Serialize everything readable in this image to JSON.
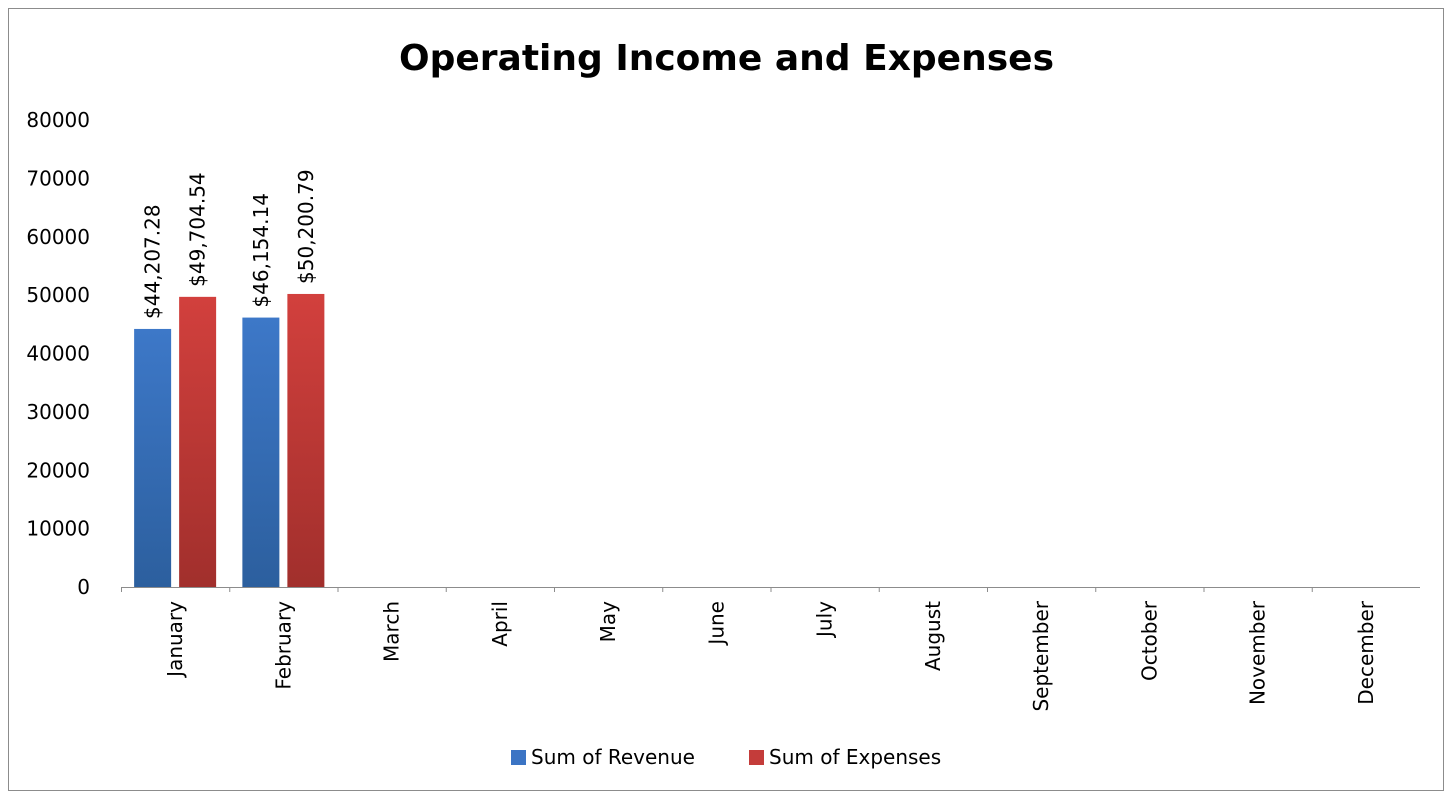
{
  "chart_data": {
    "type": "bar",
    "title": "Operating Income and Expenses",
    "categories": [
      "January",
      "February",
      "March",
      "April",
      "May",
      "June",
      "July",
      "August",
      "September",
      "October",
      "November",
      "December"
    ],
    "series": [
      {
        "name": "Sum of Revenue",
        "values": [
          44207.28,
          46154.14,
          null,
          null,
          null,
          null,
          null,
          null,
          null,
          null,
          null,
          null
        ],
        "labels": [
          "$44,207.28",
          "$46,154.14"
        ],
        "color": "#3b74c4"
      },
      {
        "name": "Sum of Expenses",
        "values": [
          49704.54,
          50200.79,
          null,
          null,
          null,
          null,
          null,
          null,
          null,
          null,
          null,
          null
        ],
        "labels": [
          "$49,704.54",
          "$50,200.79"
        ],
        "color": "#c43c3a"
      }
    ],
    "yticks": [
      "0",
      "10000",
      "20000",
      "30000",
      "40000",
      "50000",
      "60000",
      "70000",
      "80000"
    ],
    "ylim": [
      0,
      80000
    ],
    "grid": false,
    "legend": "bottom"
  }
}
